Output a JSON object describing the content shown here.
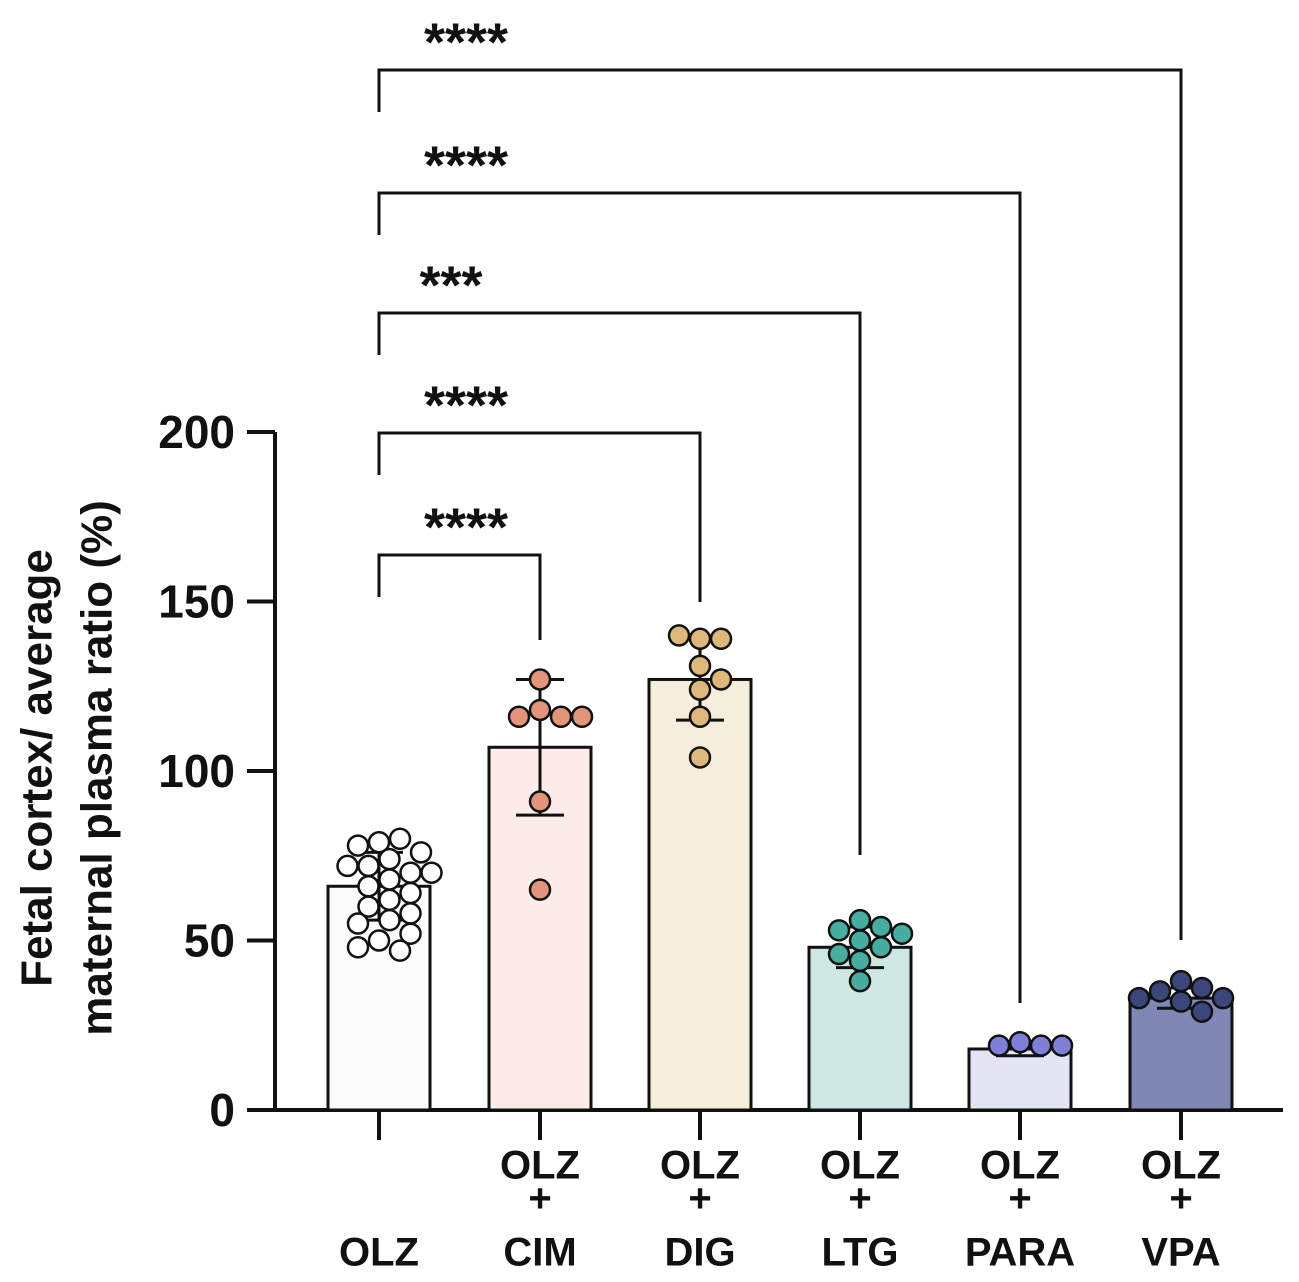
{
  "chart_data": {
    "type": "bar",
    "ylabel_lines": [
      "Fetal cortex/ average",
      "maternal plasma ratio (%)"
    ],
    "xlabel": "",
    "ylim": [
      0,
      200
    ],
    "yticks": [
      0,
      50,
      100,
      150,
      200
    ],
    "categories": [
      {
        "lines": [
          "",
          "",
          "OLZ"
        ]
      },
      {
        "lines": [
          "OLZ",
          "+",
          "CIM"
        ]
      },
      {
        "lines": [
          "OLZ",
          "+",
          "DIG"
        ]
      },
      {
        "lines": [
          "OLZ",
          "+",
          "LTG"
        ]
      },
      {
        "lines": [
          "OLZ",
          "+",
          "PARA"
        ]
      },
      {
        "lines": [
          "OLZ",
          "+",
          "VPA"
        ]
      }
    ],
    "series": [
      {
        "values": [
          66,
          107,
          127,
          48,
          18,
          33
        ],
        "sd": [
          10,
          20,
          12,
          6,
          2,
          3
        ],
        "fills": [
          "#fcfcfc",
          "#fcebe6",
          "#f6eedc",
          "#cfe7e2",
          "#e3e4f4",
          "#7f87b5"
        ],
        "dot_colors": [
          "#ffffff",
          "#e3957c",
          "#ddb77c",
          "#47ada0",
          "#7d80d6",
          "#3b477a"
        ],
        "points": [
          [
            79,
            80,
            78,
            76,
            74,
            72,
            72,
            70,
            70,
            68,
            66,
            64,
            62,
            60,
            58,
            56,
            55,
            52,
            50,
            48,
            47
          ],
          [
            127,
            118,
            116,
            116,
            116,
            91,
            65
          ],
          [
            139,
            139,
            140,
            131,
            127,
            124,
            116,
            104
          ],
          [
            56,
            54,
            53,
            52,
            50,
            48,
            46,
            44,
            38
          ],
          [
            20,
            19,
            19,
            19
          ],
          [
            38,
            36,
            35,
            33,
            33,
            32,
            29
          ]
        ]
      }
    ],
    "comparisons": [
      {
        "from": 0,
        "to": 1,
        "label": "****"
      },
      {
        "from": 0,
        "to": 2,
        "label": "****"
      },
      {
        "from": 0,
        "to": 3,
        "label": "***"
      },
      {
        "from": 0,
        "to": 4,
        "label": "****"
      },
      {
        "from": 0,
        "to": 5,
        "label": "****"
      }
    ],
    "grid": false,
    "legend": "none"
  }
}
